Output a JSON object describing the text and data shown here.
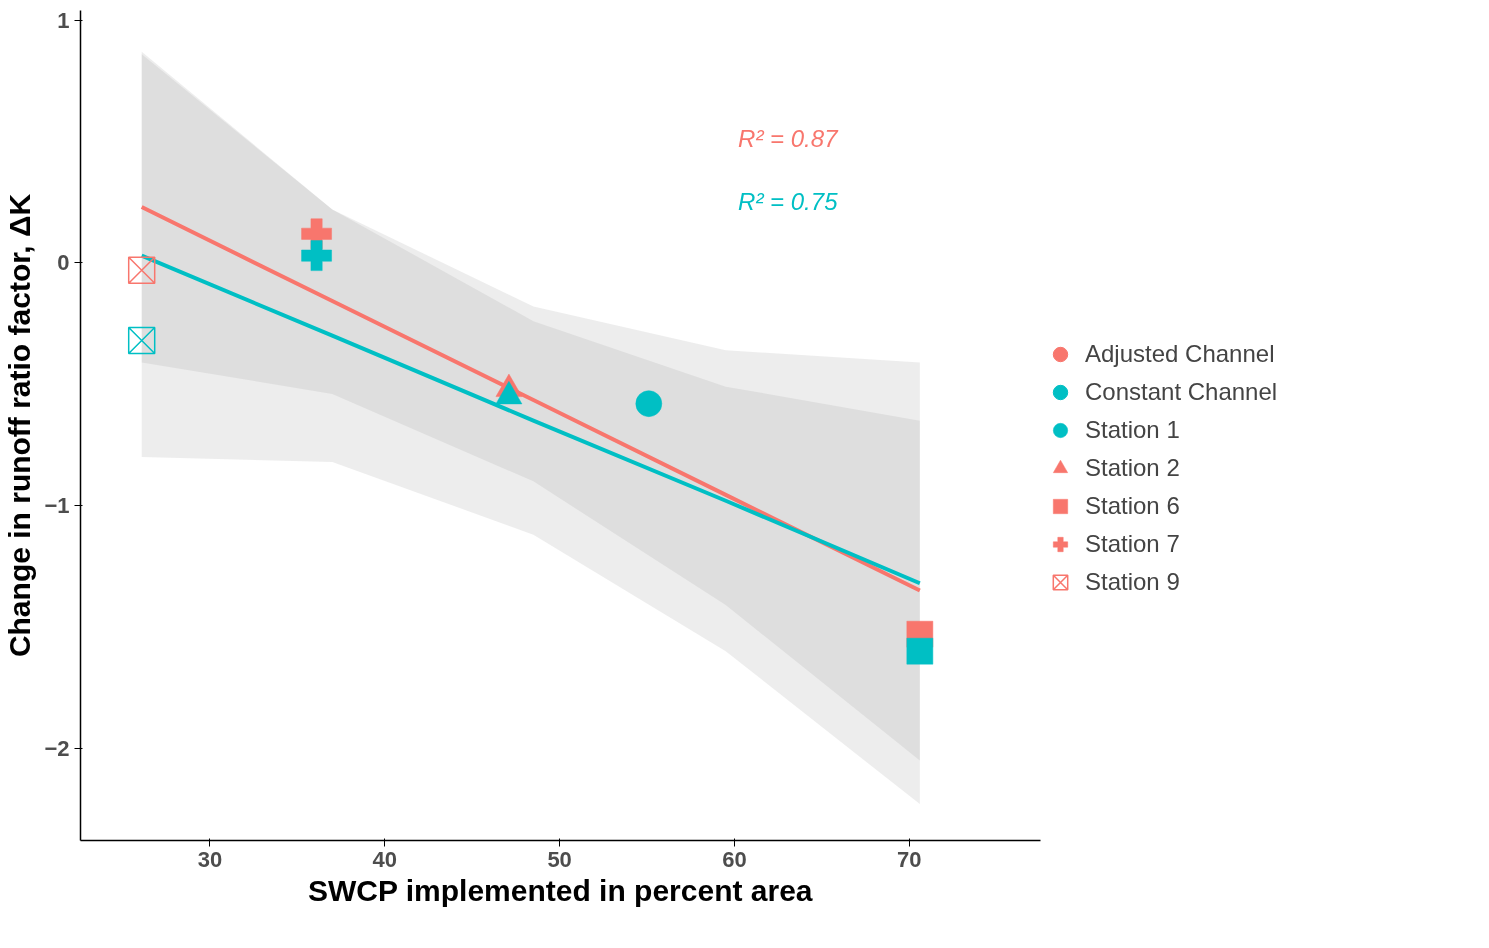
{
  "chart_data": {
    "type": "scatter",
    "xlabel": "SWCP implemented in percent area",
    "ylabel": "Change in runoff ratio factor, ΔK",
    "xlim": [
      22.6,
      77.5
    ],
    "xticks": [
      30,
      40,
      50,
      60,
      70
    ],
    "ylim": [
      -2.38,
      1.04
    ],
    "yticks": [
      -2,
      -1,
      0,
      1
    ],
    "grid": false,
    "legend": "right",
    "annotations": [
      "R² = 0.87",
      "R² = 0.75"
    ],
    "series": [
      {
        "type": "line",
        "name": "Adjusted Channel",
        "color": "#f8766d",
        "x": [
          26.1,
          37,
          48.5,
          59.5,
          70.6
        ],
        "values": [
          0.23,
          -0.157,
          -0.565,
          -0.956,
          -1.35
        ],
        "lower": [
          -0.41,
          -0.54,
          -0.9,
          -1.41,
          -2.05
        ],
        "upper": [
          0.87,
          0.22,
          -0.24,
          -0.51,
          -0.65
        ]
      },
      {
        "type": "line",
        "name": "Constant Channel",
        "color": "#00bfc4",
        "x": [
          26.1,
          37,
          48.5,
          59.5,
          70.6
        ],
        "values": [
          0.03,
          -0.3,
          -0.65,
          -0.98,
          -1.32
        ],
        "lower": [
          -0.8,
          -0.82,
          -1.12,
          -1.6,
          -2.23
        ],
        "upper": [
          0.86,
          0.22,
          -0.18,
          -0.36,
          -0.41
        ]
      },
      {
        "name": "Station 1",
        "marker": "circle",
        "x": [
          55.1
        ],
        "values": [
          -0.58
        ],
        "colors": [
          "#00bfc4"
        ]
      },
      {
        "name": "Station 2",
        "marker": "triangle",
        "x": [
          47.1,
          47.1
        ],
        "values": [
          -0.52,
          -0.55
        ],
        "colors": [
          "#f8766d",
          "#00bfc4"
        ]
      },
      {
        "name": "Station 6",
        "marker": "square",
        "x": [
          70.6,
          70.6
        ],
        "values": [
          -1.53,
          -1.6
        ],
        "colors": [
          "#f8766d",
          "#00bfc4"
        ]
      },
      {
        "name": "Station 7",
        "marker": "cross",
        "x": [
          36.1,
          36.1
        ],
        "values": [
          0.12,
          0.03
        ],
        "colors": [
          "#f8766d",
          "#00bfc4"
        ]
      },
      {
        "name": "Station 9",
        "marker": "square_x",
        "x": [
          26.1,
          26.1
        ],
        "values": [
          -0.03,
          -0.32
        ],
        "colors": [
          "#f8766d",
          "#00bfc4"
        ]
      }
    ]
  }
}
